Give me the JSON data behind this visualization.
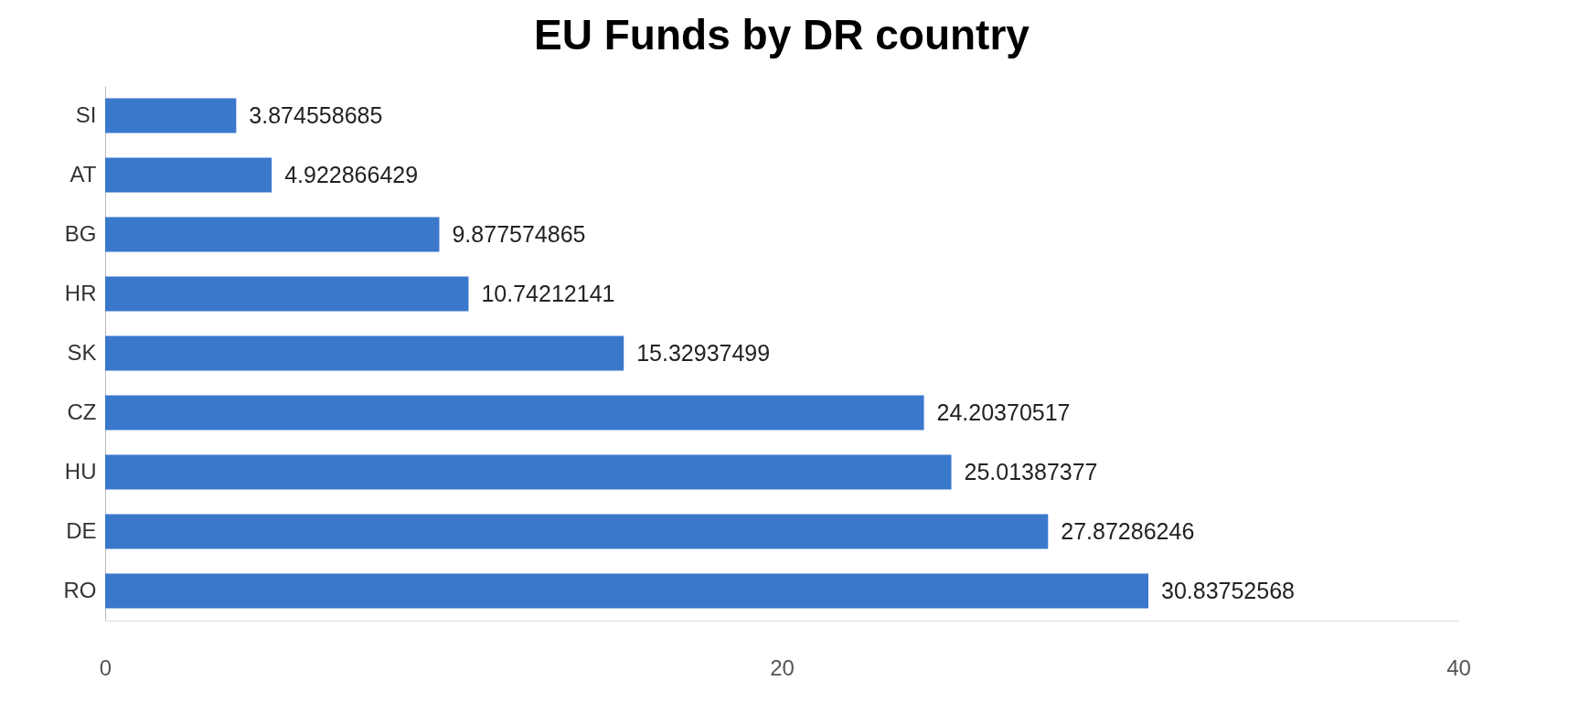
{
  "chart_data": {
    "type": "bar",
    "orientation": "horizontal",
    "title": "EU Funds by DR country",
    "categories": [
      "SI",
      "AT",
      "BG",
      "HR",
      "SK",
      "CZ",
      "HU",
      "DE",
      "RO"
    ],
    "values": [
      3.874558685,
      4.922866429,
      9.877574865,
      10.74212141,
      15.32937499,
      24.20370517,
      25.01387377,
      27.87286246,
      30.83752568
    ],
    "color": "#3a78cc",
    "xlim": [
      0,
      40
    ],
    "xticks": [
      0,
      20,
      40
    ],
    "grid": false,
    "data_labels": true
  }
}
